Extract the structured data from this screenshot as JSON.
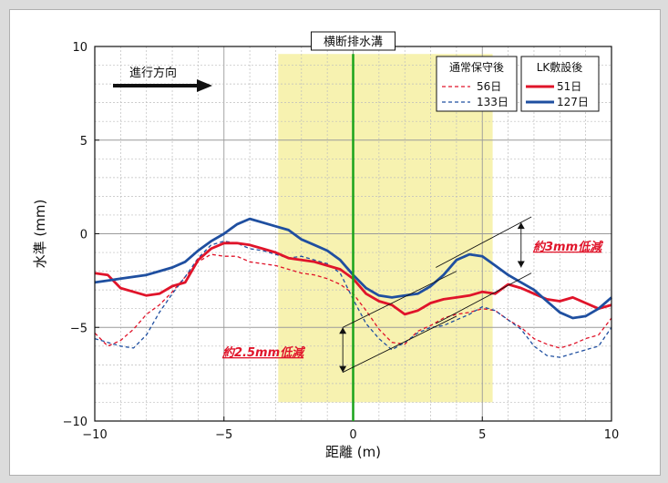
{
  "chart_data": {
    "type": "line",
    "xlabel": "距離 (m)",
    "ylabel": "水準 (mm)",
    "xlim": [
      -10,
      10
    ],
    "ylim": [
      -10,
      10
    ],
    "xticks": [
      "−10",
      "−5",
      "0",
      "5",
      "10"
    ],
    "yticks": [
      "10",
      "5",
      "0",
      "−5",
      "−10"
    ],
    "grid": true,
    "highlight_region": {
      "x": [
        -2.9,
        5.4
      ],
      "color": "#f7f2b0"
    },
    "center_line": {
      "x": 0,
      "label": "横断排水溝",
      "color": "#1aa31a"
    },
    "direction_label": "進行方向",
    "legend_group1_title": "通常保守後",
    "legend_group2_title": "LK敷設後",
    "series": [
      {
        "name": "56日",
        "group": 1,
        "color": "#e0142a",
        "style": "dashed",
        "x": [
          -10,
          -9.5,
          -9,
          -8.5,
          -8,
          -7.5,
          -7,
          -6.5,
          -6,
          -5.5,
          -5,
          -4.5,
          -4,
          -3.5,
          -3,
          -2.5,
          -2,
          -1.5,
          -1,
          -0.5,
          0,
          0.5,
          1,
          1.5,
          2,
          2.5,
          3,
          3.5,
          4,
          4.5,
          5,
          5.5,
          6,
          6.5,
          7,
          7.5,
          8,
          8.5,
          9,
          9.5,
          10
        ],
        "y": [
          -5.3,
          -6.0,
          -5.7,
          -5.1,
          -4.3,
          -3.8,
          -3.1,
          -2.3,
          -1.5,
          -1.1,
          -1.2,
          -1.2,
          -1.5,
          -1.6,
          -1.7,
          -1.9,
          -2.1,
          -2.2,
          -2.4,
          -2.7,
          -3.2,
          -4.1,
          -5.1,
          -5.8,
          -5.9,
          -5.2,
          -4.9,
          -4.5,
          -4.3,
          -4.2,
          -4.0,
          -4.1,
          -4.6,
          -5.0,
          -5.6,
          -5.9,
          -6.1,
          -5.9,
          -5.6,
          -5.4,
          -4.5
        ]
      },
      {
        "name": "133日",
        "group": 1,
        "color": "#1f4fa0",
        "style": "dashed",
        "x": [
          -10,
          -9.5,
          -9,
          -8.5,
          -8,
          -7.5,
          -7,
          -6.5,
          -6,
          -5.5,
          -5,
          -4.5,
          -4,
          -3.5,
          -3,
          -2.5,
          -2,
          -1.5,
          -1,
          -0.5,
          0,
          0.5,
          1,
          1.5,
          2,
          2.5,
          3,
          3.5,
          4,
          4.5,
          5,
          5.5,
          6,
          6.5,
          7,
          7.5,
          8,
          8.5,
          9,
          9.5,
          10
        ],
        "y": [
          -5.6,
          -5.8,
          -6.0,
          -6.1,
          -5.4,
          -4.2,
          -3.2,
          -2.3,
          -1.3,
          -0.6,
          -0.4,
          -0.5,
          -0.8,
          -0.9,
          -1.1,
          -1.3,
          -1.2,
          -1.4,
          -1.6,
          -2.1,
          -3.5,
          -4.8,
          -5.6,
          -6.2,
          -5.8,
          -5.3,
          -5.0,
          -4.9,
          -4.6,
          -4.3,
          -3.9,
          -4.1,
          -4.6,
          -5.1,
          -6.0,
          -6.5,
          -6.6,
          -6.4,
          -6.2,
          -6.0,
          -5.0
        ]
      },
      {
        "name": "51日",
        "group": 2,
        "color": "#e0142a",
        "style": "solid",
        "x": [
          -10,
          -9.5,
          -9,
          -8.5,
          -8,
          -7.5,
          -7,
          -6.5,
          -6,
          -5.5,
          -5,
          -4.5,
          -4,
          -3.5,
          -3,
          -2.5,
          -2,
          -1.5,
          -1,
          -0.5,
          0,
          0.5,
          1,
          1.5,
          2,
          2.5,
          3,
          3.5,
          4,
          4.5,
          5,
          5.5,
          6,
          6.5,
          7,
          7.5,
          8,
          8.5,
          9,
          9.5,
          10
        ],
        "y": [
          -2.1,
          -2.2,
          -2.9,
          -3.1,
          -3.3,
          -3.2,
          -2.8,
          -2.6,
          -1.4,
          -0.8,
          -0.5,
          -0.5,
          -0.6,
          -0.8,
          -1.0,
          -1.3,
          -1.4,
          -1.5,
          -1.7,
          -1.9,
          -2.4,
          -3.2,
          -3.6,
          -3.8,
          -4.3,
          -4.1,
          -3.7,
          -3.5,
          -3.4,
          -3.3,
          -3.1,
          -3.2,
          -2.7,
          -2.9,
          -3.2,
          -3.5,
          -3.6,
          -3.4,
          -3.7,
          -4.0,
          -3.8
        ]
      },
      {
        "name": "127日",
        "group": 2,
        "color": "#1f4fa0",
        "style": "solid",
        "x": [
          -10,
          -9.5,
          -9,
          -8.5,
          -8,
          -7.5,
          -7,
          -6.5,
          -6,
          -5.5,
          -5,
          -4.5,
          -4,
          -3.5,
          -3,
          -2.5,
          -2,
          -1.5,
          -1,
          -0.5,
          0,
          0.5,
          1,
          1.5,
          2,
          2.5,
          3,
          3.5,
          4,
          4.5,
          5,
          5.5,
          6,
          6.5,
          7,
          7.5,
          8,
          8.5,
          9,
          9.5,
          10
        ],
        "y": [
          -2.6,
          -2.5,
          -2.4,
          -2.3,
          -2.2,
          -2.0,
          -1.8,
          -1.5,
          -0.9,
          -0.4,
          0.0,
          0.5,
          0.8,
          0.6,
          0.4,
          0.2,
          -0.3,
          -0.6,
          -0.9,
          -1.4,
          -2.2,
          -2.9,
          -3.3,
          -3.4,
          -3.3,
          -3.2,
          -2.8,
          -2.2,
          -1.4,
          -1.1,
          -1.2,
          -1.7,
          -2.2,
          -2.6,
          -3.0,
          -3.6,
          -4.2,
          -4.5,
          -4.4,
          -4.0,
          -3.4
        ]
      }
    ],
    "annotations": [
      {
        "text": "約3mm低減"
      },
      {
        "text": "約2.5mm低減"
      }
    ]
  }
}
